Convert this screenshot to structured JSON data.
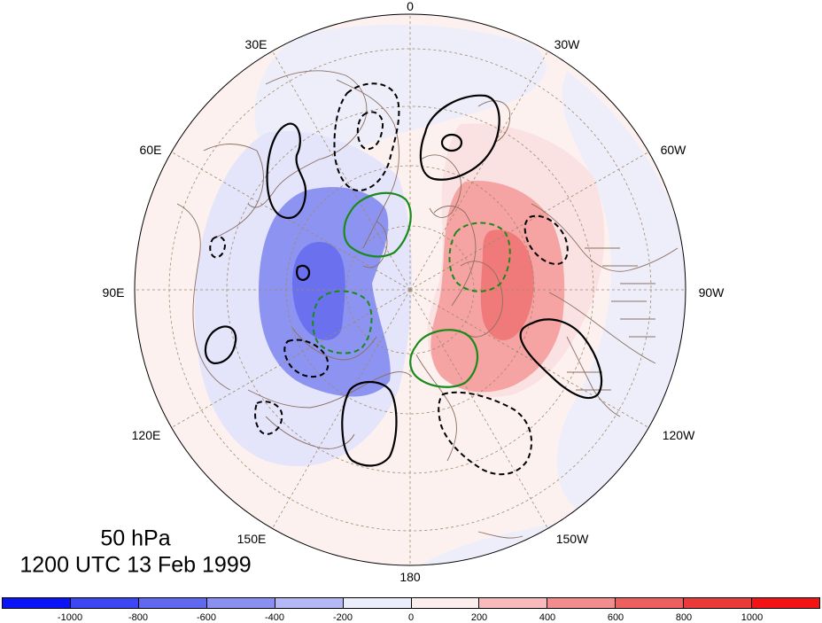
{
  "title": {
    "level": "50 hPa",
    "datetime": "1200 UTC 13 Feb 1999"
  },
  "longitude_labels": [
    {
      "key": "0",
      "text": "0"
    },
    {
      "key": "30w",
      "text": "30W"
    },
    {
      "key": "60w",
      "text": "60W"
    },
    {
      "key": "90w",
      "text": "90W"
    },
    {
      "key": "120w",
      "text": "120W"
    },
    {
      "key": "150w",
      "text": "150W"
    },
    {
      "key": "180",
      "text": "180"
    },
    {
      "key": "150e",
      "text": "150E"
    },
    {
      "key": "120e",
      "text": "120E"
    },
    {
      "key": "90e",
      "text": "90E"
    },
    {
      "key": "60e",
      "text": "60E"
    },
    {
      "key": "30e",
      "text": "30E"
    }
  ],
  "colorbar": {
    "colors": [
      "#0a14f5",
      "#3c46f2",
      "#6068f0",
      "#8a90f2",
      "#b4b8f7",
      "#ecedfc",
      "#fdeeee",
      "#f8baba",
      "#f38c8c",
      "#ee6060",
      "#ea3a3a",
      "#f21414"
    ],
    "labels": [
      "-1000",
      "-800",
      "-600",
      "-400",
      "-200",
      "0",
      "200",
      "400",
      "600",
      "800",
      "1000"
    ]
  },
  "legend_colors": {
    "contour_black": "#000000",
    "contour_green": "#1a8a1a",
    "coastline": "#8a7060",
    "graticule": "#a08a6a"
  }
}
